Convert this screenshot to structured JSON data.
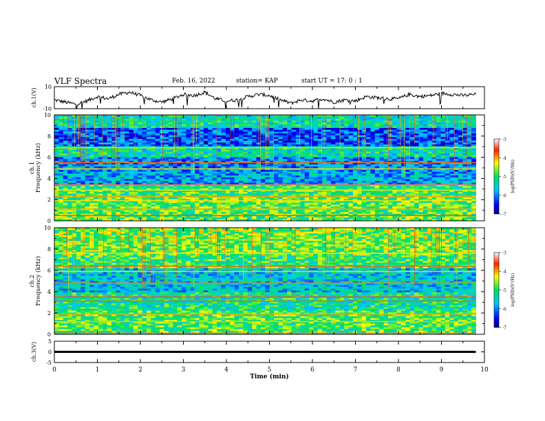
{
  "header": {
    "title": "VLF Spectra",
    "date": "Feb. 16, 2022",
    "station": "station= KAP",
    "start": "start  UT  =   17: 0  : 1"
  },
  "chart_data": [
    {
      "type": "line",
      "panel": "ch1-waveform",
      "ylabel": "ch.1(V)",
      "ylim": [
        -10,
        10
      ],
      "yticks": [
        "10",
        "-10"
      ],
      "xlim": [
        0,
        10
      ],
      "data_end_min": 9.8,
      "series": [
        {
          "x": [
            0,
            0.25,
            0.5,
            0.75,
            1,
            1.25,
            1.5,
            1.75,
            2,
            2.25,
            2.5,
            2.75,
            3,
            3.25,
            3.5,
            3.75,
            4,
            4.25,
            4.5,
            4.75,
            5,
            5.25,
            5.5,
            5.75,
            6,
            6.25,
            6.5,
            6.75,
            7,
            7.25,
            7.5,
            7.75,
            8,
            8.25,
            8.5,
            8.75,
            9,
            9.25,
            9.5,
            9.8
          ],
          "y": [
            -2,
            -4,
            -6,
            -3,
            1,
            -1,
            3,
            5,
            2,
            -2,
            -4,
            -1,
            3,
            2,
            5,
            -1,
            -3,
            -2,
            1,
            3,
            2,
            -2,
            -5,
            -2,
            -3,
            -1,
            -4,
            -2,
            -3,
            1,
            0,
            -1,
            -1,
            3,
            1,
            2,
            4,
            3,
            2,
            3
          ]
        }
      ]
    },
    {
      "type": "heatmap",
      "panel": "ch1-spectrogram",
      "ylabel": "ch.1\nFrequency (kHz)",
      "ylim": [
        0,
        10
      ],
      "yticks": [
        "0",
        "2",
        "4",
        "6",
        "8",
        "10"
      ],
      "xlim": [
        0,
        10
      ],
      "data_end_min": 9.8,
      "colorbar": {
        "label": "log(PSD)(V²/Hz)",
        "range": [
          -7,
          -3
        ],
        "ticks": [
          "-3",
          "-4",
          "-5",
          "-6",
          "-7"
        ]
      },
      "bands": [
        {
          "from": 0,
          "to": 2.2,
          "level": -4.8
        },
        {
          "from": 2.2,
          "to": 3.5,
          "level": -5.0
        },
        {
          "from": 3.5,
          "to": 4.6,
          "level": -5.8
        },
        {
          "from": 4.6,
          "to": 6.0,
          "level": -5.9
        },
        {
          "from": 6.0,
          "to": 7.0,
          "level": -5.3
        },
        {
          "from": 7.0,
          "to": 8.8,
          "level": -6.2
        },
        {
          "from": 8.8,
          "to": 10,
          "level": -5.3
        }
      ],
      "lines": [
        {
          "f": 0.5,
          "level": -3.5
        },
        {
          "f": 1.1,
          "level": -4.0
        },
        {
          "f": 1.9,
          "level": -4.2
        },
        {
          "f": 2.3,
          "level": -4.0
        },
        {
          "f": 2.9,
          "level": -4.2
        },
        {
          "f": 3.4,
          "level": -3.4
        },
        {
          "f": 4.9,
          "level": -4.2
        },
        {
          "f": 5.5,
          "level": -3.8
        },
        {
          "f": 6.9,
          "level": -4.5
        }
      ]
    },
    {
      "type": "heatmap",
      "panel": "ch2-spectrogram",
      "ylabel": "ch.2\nFrequency (kHz)",
      "ylim": [
        0,
        10
      ],
      "yticks": [
        "0",
        "2",
        "4",
        "6",
        "8",
        "10"
      ],
      "xlim": [
        0,
        10
      ],
      "data_end_min": 9.8,
      "colorbar": {
        "label": "log(PSD)(V²/Hz)",
        "range": [
          -7,
          -3
        ],
        "ticks": [
          "-3",
          "-4",
          "-5",
          "-6",
          "-7"
        ]
      },
      "bands": [
        {
          "from": 0,
          "to": 2.2,
          "level": -4.9
        },
        {
          "from": 2.2,
          "to": 4.0,
          "level": -5.2
        },
        {
          "from": 4.0,
          "to": 6.2,
          "level": -5.6
        },
        {
          "from": 6.2,
          "to": 7.5,
          "level": -5.0
        },
        {
          "from": 7.5,
          "to": 10,
          "level": -4.7
        }
      ],
      "lines": [
        {
          "f": 0.1,
          "level": -3.4
        },
        {
          "f": 1.2,
          "level": -4.1
        },
        {
          "f": 1.9,
          "level": -4.0
        },
        {
          "f": 3.1,
          "level": -3.8
        },
        {
          "f": 3.5,
          "level": -3.5
        },
        {
          "f": 4.8,
          "level": -3.9
        },
        {
          "f": 5.9,
          "level": -4.2
        },
        {
          "f": 6.4,
          "level": -3.8
        },
        {
          "f": 7.6,
          "level": -4.2
        }
      ]
    },
    {
      "type": "line",
      "panel": "ch3-waveform",
      "ylabel": "ch.3(V)",
      "ylim": [
        -5,
        5
      ],
      "yticks": [
        "5",
        "0",
        "-5"
      ],
      "xlim": [
        0,
        10
      ],
      "xticks": [
        "0",
        "1",
        "2",
        "3",
        "4",
        "5",
        "6",
        "7",
        "8",
        "9",
        "10"
      ],
      "xlabel": "Time  (min)",
      "data_end_min": 9.8,
      "series": [
        {
          "x": [
            0,
            9.8
          ],
          "y": [
            0,
            0
          ],
          "band": [
            -0.5,
            0.5
          ]
        }
      ]
    }
  ]
}
